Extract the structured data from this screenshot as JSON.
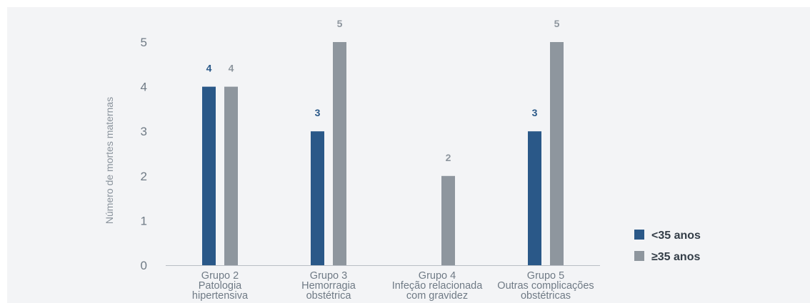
{
  "chart_data": {
    "type": "bar",
    "ylabel": "Número de mortes maternas",
    "xlabel": "",
    "ylim": [
      0,
      5
    ],
    "yticks": [
      "0",
      "1",
      "2",
      "3",
      "4",
      "5"
    ],
    "grid": false,
    "legend_position": "right",
    "categories": [
      [
        "Grupo 2",
        "Patologia",
        "hipertensiva"
      ],
      [
        "Grupo 3",
        "Hemorragia",
        "obstétrica"
      ],
      [
        "Grupo 4",
        "Infeção relacionada",
        "com gravidez"
      ],
      [
        "Grupo 5",
        "Outras complicações",
        "obstétricas"
      ]
    ],
    "series": [
      {
        "name": "<35 anos",
        "color": "#2a5888",
        "values": [
          4,
          3,
          null,
          3
        ],
        "labels": [
          "4",
          "3",
          "",
          "3"
        ]
      },
      {
        "name": "≥35 anos",
        "color": "#8e969e",
        "values": [
          4,
          5,
          2,
          5
        ],
        "labels": [
          "4",
          "5",
          "2",
          "5"
        ]
      }
    ]
  }
}
